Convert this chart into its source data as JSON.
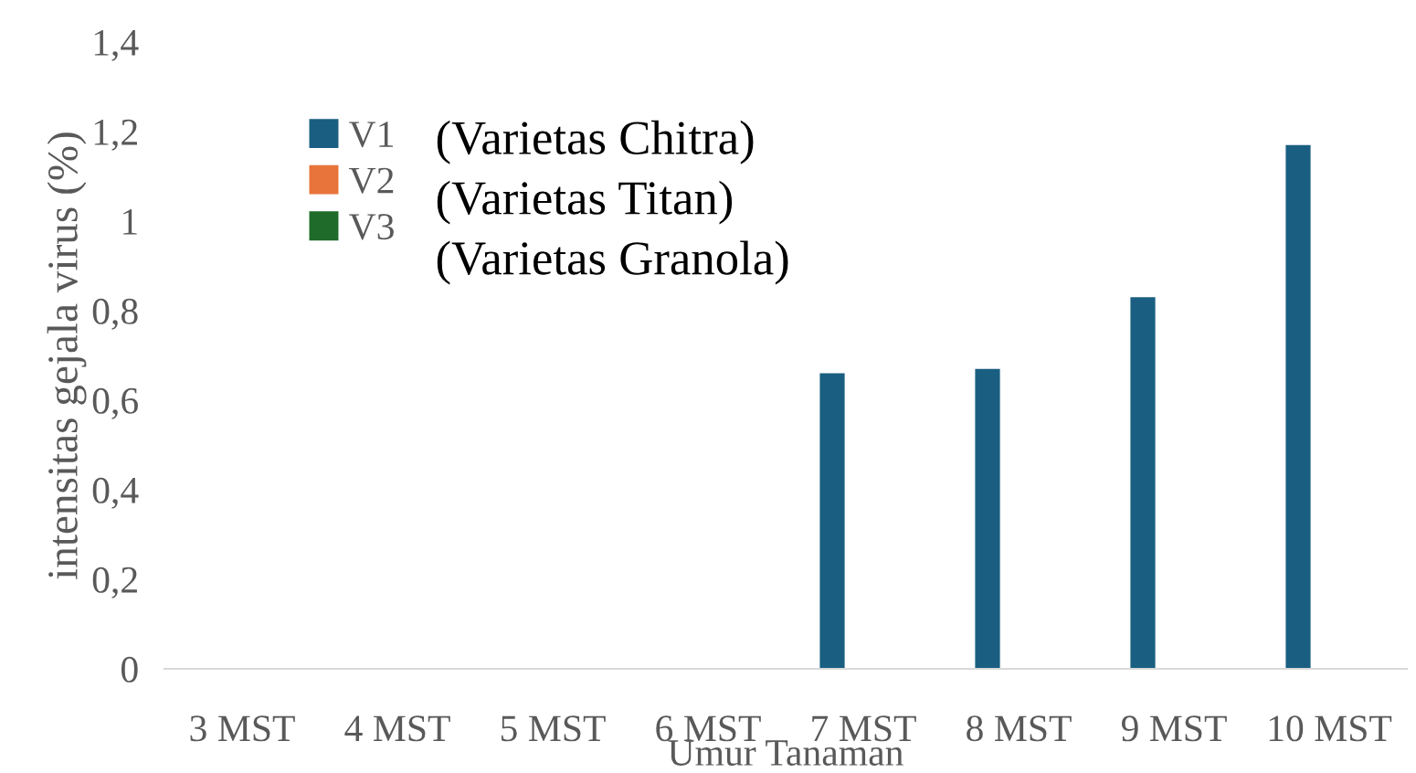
{
  "chart_data": {
    "type": "bar",
    "xlabel": "Umur Tanaman",
    "ylabel": "intensitas gejala virus (%)",
    "categories": [
      "3 MST",
      "4 MST",
      "5 MST",
      "6 MST",
      "7 MST",
      "8 MST",
      "9 MST",
      "10 MST"
    ],
    "series": [
      {
        "name": "V1",
        "color": "#1a5f81",
        "values": [
          0,
          0,
          0,
          0,
          0.66,
          0.67,
          0.83,
          1.17
        ]
      },
      {
        "name": "V2",
        "color": "#e8743b",
        "values": [
          0,
          0,
          0,
          0,
          0,
          0,
          0,
          0
        ]
      },
      {
        "name": "V3",
        "color": "#1e6b2a",
        "values": [
          0,
          0,
          0,
          0,
          0,
          0,
          0,
          0
        ]
      }
    ],
    "ylim": [
      0,
      1.4
    ],
    "yticks": [
      {
        "value": 0,
        "label": "0"
      },
      {
        "value": 0.2,
        "label": "0,2"
      },
      {
        "value": 0.4,
        "label": "0,4"
      },
      {
        "value": 0.6,
        "label": "0,6"
      },
      {
        "value": 0.8,
        "label": "0,8"
      },
      {
        "value": 1,
        "label": "1"
      },
      {
        "value": 1.2,
        "label": "1,2"
      },
      {
        "value": 1.4,
        "label": "1,4"
      }
    ],
    "annotations": [
      "(Varietas Chitra)",
      "(Varietas Titan)",
      "(Varietas Granola)"
    ],
    "legend": "top left",
    "grid": false
  }
}
